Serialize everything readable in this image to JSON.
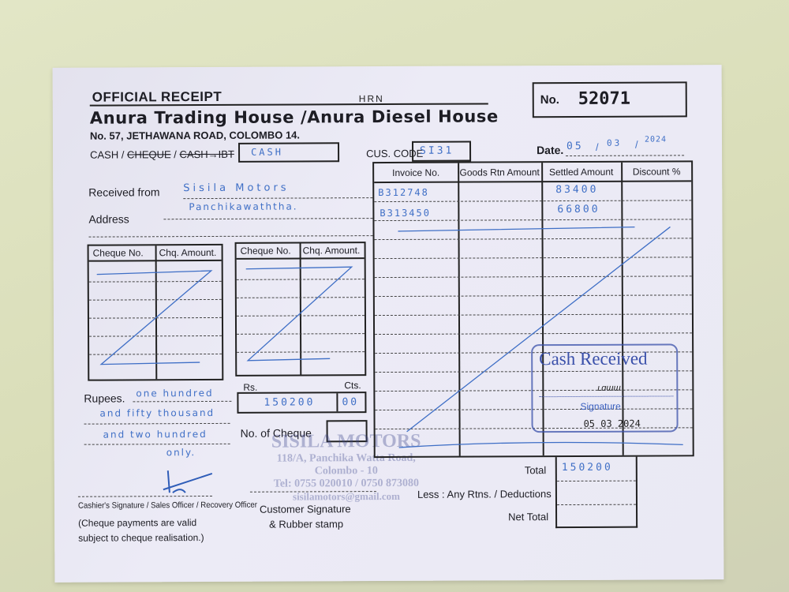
{
  "receipt": {
    "title": "OFFICIAL RECEIPT",
    "hand_note": "HRN",
    "company": "Anura Trading House /Anura Diesel House",
    "address": "No. 57, JETHAWANA ROAD, COLOMBO 14.",
    "no_label": "No.",
    "number": "52071",
    "pay_mode_cash": "CASH /",
    "pay_mode_cheque": "CHEQUE",
    "pay_mode_sep": "/",
    "pay_mode_ibt": "CASH→IBT",
    "pay_mode_value": "CASH",
    "cus_code_label": "CUS. CODE",
    "cus_code_value": "SI31",
    "date_label": "Date.",
    "date_day": "05",
    "date_month": "03",
    "date_year": "2024",
    "received_from_label": "Received from",
    "received_from_value": "Sisila Motors",
    "address_label": "Address",
    "address_value": "Panchikawaththa.",
    "cheque_table_headers": [
      "Cheque No.",
      "Chq. Amount."
    ],
    "rupees_label": "Rupees.",
    "rupees_words": [
      "one hundred",
      "and fifty thousand",
      "and two hundred",
      "only."
    ],
    "rs_label": "Rs.",
    "cts_label": "Cts.",
    "rs_value": "150200",
    "cts_value": "00",
    "no_of_cheque_label": "No. of Cheque",
    "invoice_headers": [
      "Invoice No.",
      "Goods Rtn Amount",
      "Settled Amount",
      "Discount %"
    ],
    "invoices": [
      {
        "invoice": "B312748",
        "goods_rtn": "",
        "settled": "83400",
        "discount": ""
      },
      {
        "invoice": "B313450",
        "goods_rtn": "",
        "settled": "66800",
        "discount": ""
      }
    ],
    "total_label": "Total",
    "total_value": "150200",
    "less_label": "Less : Any Rtns. / Deductions",
    "net_total_label": "Net Total",
    "cashier_sig_label": "Cashier's Signature / Sales Officer / Recovery Officer",
    "cheque_note": "(Cheque payments are valid subject to cheque realisation.)",
    "customer_sig_label": "Customer Signature",
    "rubber_stamp_label": "& Rubber stamp",
    "customer_stamp": {
      "name": "SISILA MOTORS",
      "address1": "118/A, Panchika Watta Road,",
      "address2": "Colombo - 10",
      "tel": "Tel: 0755 020010 / 0750 873080",
      "email": "sisilamotors@gmail.com"
    },
    "cash_stamp": {
      "title": "Cash Received",
      "signature_label": "Signature",
      "date": "05 03 2024"
    }
  },
  "colors": {
    "ink": "#3f6fc6",
    "stamp": "#3a4a9a",
    "background": "#dde1bf",
    "paper": "#ebeaf5"
  }
}
